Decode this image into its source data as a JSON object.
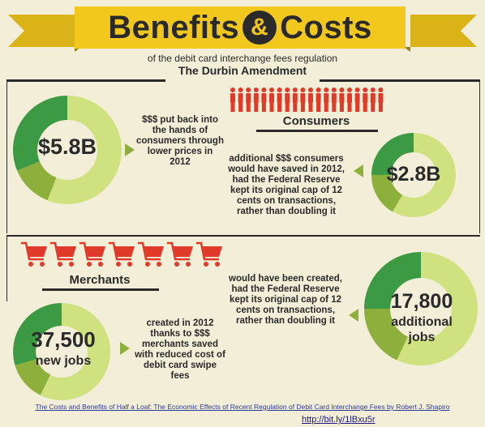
{
  "header": {
    "title_left": "Benefits",
    "title_amp": "&",
    "title_right": "Costs",
    "subtitle": "of the debit card interchange fees regulation",
    "subtitle_bold": "The Durbin Amendment"
  },
  "colors": {
    "banner": "#f2c81e",
    "dark_text": "#2a2a2a",
    "green_dark": "#3c9a45",
    "green_mid": "#8db03d",
    "green_light": "#cfe27f",
    "accent_red": "#e03a2a"
  },
  "icons": {
    "consumers": "person-icon",
    "merchants": "shopping-cart-icon"
  },
  "consumers": {
    "label": "Consumers",
    "benefit": {
      "value": "$5.8B",
      "text": "$$$ put back into the hands of consumers through lower prices in 2012"
    },
    "cost": {
      "value": "$2.8B",
      "text": "additional $$$ consumers would have saved in 2012, had the Federal Reserve kept its original cap of 12 cents on transactions, rather than doubling it"
    }
  },
  "merchants": {
    "label": "Merchants",
    "benefit": {
      "value": "37,500",
      "unit": "new jobs",
      "text": "created in 2012 thanks to $$$ merchants saved with reduced cost of debit card swipe fees"
    },
    "cost": {
      "value": "17,800",
      "unit": "additional jobs",
      "text": "would have been created, had the Federal Reserve kept its original cap of 12 cents on transactions, rather than doubling it"
    }
  },
  "source": {
    "text": "The Costs and Benefits of Half a Loaf: The Economic Effects of Recent Regulation of Debit Card Interchange Fees by Robert J. Shapiro",
    "link": "http://bit.ly/1lBxu5r"
  }
}
